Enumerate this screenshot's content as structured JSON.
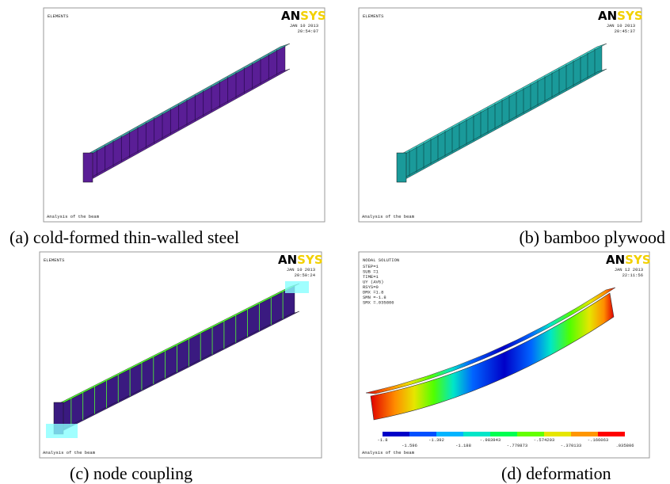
{
  "panels": [
    {
      "header": "ELEMENTS",
      "logo_a": "AN",
      "logo_b": "SYS",
      "date": "JAN 10 2013",
      "time": "20:54:07",
      "footer": "Analysis of the beam",
      "caption": "(a) cold-formed thin-walled steel"
    },
    {
      "header": "ELEMENTS",
      "logo_a": "AN",
      "logo_b": "SYS",
      "date": "JAN 10 2013",
      "time": "20:45:37",
      "footer": "Analysis of the beam",
      "caption": "(b) bamboo plywood"
    },
    {
      "header": "ELEMENTS",
      "logo_a": "AN",
      "logo_b": "SYS",
      "date": "JAN 10 2013",
      "time": "20:50:24",
      "footer": "Analysis of the beam",
      "caption": "(c) node coupling"
    },
    {
      "header": "NODAL SOLUTION",
      "logo_a": "AN",
      "logo_b": "SYS",
      "date": "JAN 12 2013",
      "time": "22:11:56",
      "footer": "Analysis of the beam",
      "caption": "(d) deformation",
      "info": [
        "STEP=1",
        "SUB =1",
        "TIME=1",
        "UY       (AVG)",
        "RSYS=0",
        "DMX =1.8",
        "SMN =-1.8",
        "SMX =.035806"
      ],
      "legend_top": [
        "-1.8",
        "-1.392",
        "-.983943",
        "-.574203",
        "-.166063"
      ],
      "legend_bottom": [
        "-1.596",
        "-1.188",
        "-.779873",
        "-.370133",
        ".035806"
      ]
    }
  ]
}
